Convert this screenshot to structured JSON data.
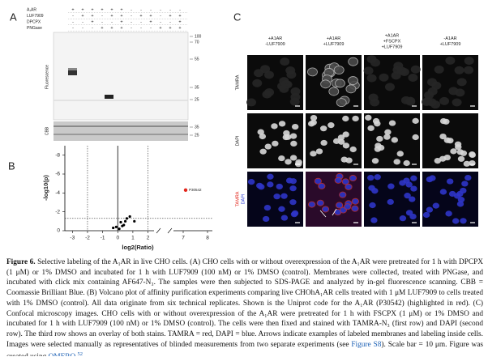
{
  "panel_a": {
    "label": "A",
    "row_labels": [
      "A₁AR",
      "LUF7909",
      "DPCPX",
      "PNGase"
    ],
    "signs": [
      [
        "+",
        "+",
        "+",
        "+",
        "+",
        "+",
        "-",
        "-",
        "-",
        "-",
        "-",
        "-"
      ],
      [
        "-",
        "+",
        "+",
        "-",
        "+",
        "+",
        "-",
        "+",
        "+",
        "-",
        "+",
        "+"
      ],
      [
        "-",
        "-",
        "+",
        "-",
        "-",
        "+",
        "-",
        "-",
        "+",
        "-",
        "-",
        "+"
      ],
      [
        "-",
        "-",
        "-",
        "+",
        "+",
        "+",
        "-",
        "-",
        "-",
        "+",
        "+",
        "+"
      ]
    ],
    "fluorescence_label": "Fluorescence",
    "cbb_label": "CBB",
    "gel_markers": [
      "100",
      "70",
      "55",
      "35",
      "25"
    ],
    "cbb_markers": [
      "35",
      "25"
    ]
  },
  "panel_b": {
    "label": "B",
    "type": "scatter",
    "y_label": "-log10(p)",
    "x_label": "log2(Ratio)",
    "x": [
      -0.3,
      -0.1,
      0.1,
      0.2,
      0.4,
      0.5,
      0.6,
      0.8,
      1.1,
      0.3
    ],
    "y": [
      -0.3,
      -0.4,
      -0.2,
      -0.9,
      -0.6,
      -1.0,
      -1.3,
      -1.5,
      -1.0,
      -0.5
    ],
    "color": "#000000",
    "highlight": {
      "x": 7.1,
      "y": -4.3,
      "label": "P30542",
      "color": "#e3261c"
    },
    "xlim": [
      -3.5,
      8.2
    ],
    "x_break": [
      2.4,
      6.6
    ],
    "ylim": [
      0,
      -9
    ],
    "xticks": [
      -3,
      -2,
      -1,
      0,
      1,
      2,
      7,
      8
    ],
    "yticks": [
      -8,
      -6,
      -4,
      -2,
      0
    ],
    "thresholds": {
      "x": [
        -2,
        2
      ],
      "y": -1.3
    }
  },
  "panel_c": {
    "label": "C",
    "columns": [
      [
        "+A1AR",
        "-LUF7909"
      ],
      [
        "+A1AR",
        "+LUF7909"
      ],
      [
        "+A1AR",
        "+FSCPX",
        "+LUF7909"
      ],
      [
        "-A1AR",
        "+LUF7909"
      ]
    ],
    "rows": [
      [
        "TAMRA"
      ],
      [
        "DAPI"
      ],
      [
        "TAMRA",
        "DAPI"
      ]
    ]
  },
  "caption": [
    {
      "text": "Figure 6.",
      "style": "bold"
    },
    {
      "text": " Selective labeling of the A₁AR in live CHO cells. (A) CHO cells with or without overexpression of the A₁AR were pretreated for 1 h with DPCPX (1 μM) or 1% DMSO and incubated for 1 h with LUF7909 (100 nM) or 1% DMSO (control). Membranes were collected, treated with PNGase, and incubated with click mix containing AF647-N₃. The samples were then subjected to SDS-PAGE and analyzed by in-gel fluorescence scanning. CBB = Coomassie Brilliant Blue. (B) Volcano plot of affinity purification experiments comparing live CHOhA₁AR cells treated with 1 μM LUF7909 to cells treated with 1% DMSO (control). All data originate from six technical replicates. Shown is the Uniprot code for the A₁AR (P30542) (highlighted in red). (C) Confocal microscopy images. CHO cells with or without overexpression of the A₁AR were pretreated for 1 h with FSCPX (1 μM) or 1% DMSO and incubated for 1 h with LUF7909 (100 nM) or 1% DMSO (control). The cells were then fixed and stained with TAMRA-N₃ (first row) and DAPI (second row). The third row shows an overlay of both stains. TAMRA = red, DAPI = blue. Arrows indicate examples of labeled membranes and labeling inside cells. Images were selected manually as representatives of blinded measurements from two separate experiments (see ",
      "style": "plain"
    },
    {
      "text": "Figure S8",
      "style": "link"
    },
    {
      "text": "). Scale bar = 10 μm. Figure was created using ",
      "style": "plain"
    },
    {
      "text": "OMERO.",
      "style": "link"
    },
    {
      "text": "52",
      "style": "sup"
    }
  ]
}
